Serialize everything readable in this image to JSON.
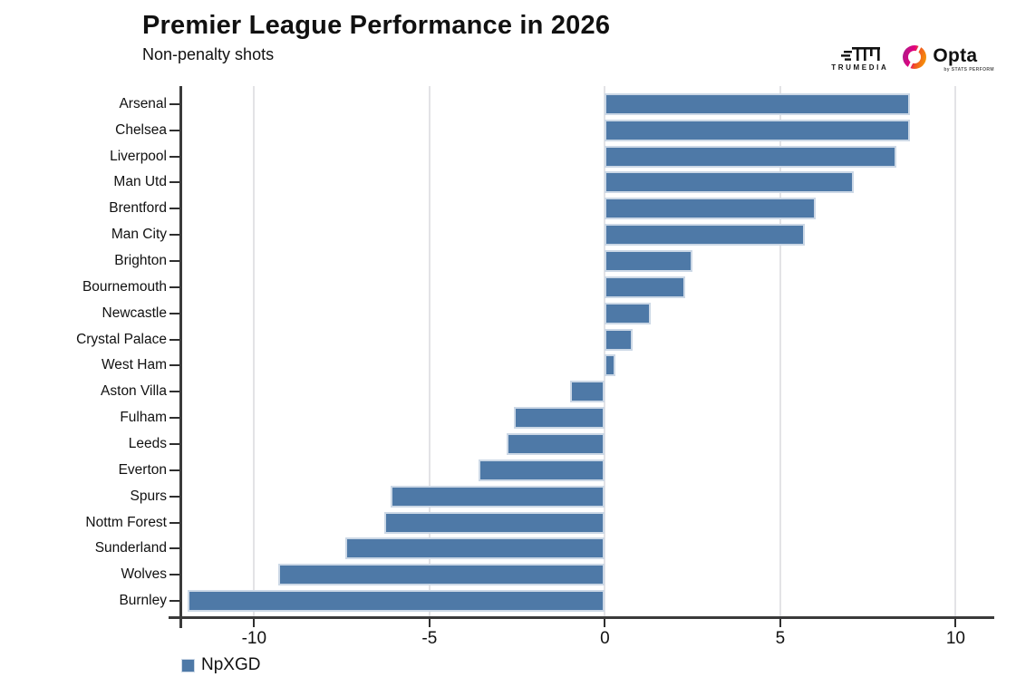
{
  "header": {
    "title": "Premier League Performance in 2026",
    "subtitle": "Non-penalty shots"
  },
  "logos": {
    "trumedia": {
      "word": "TRUMEDIA"
    },
    "opta": {
      "word": "Opta",
      "sublabel": "by STATS PERFORM"
    }
  },
  "legend": {
    "label": "NpXGD"
  },
  "chart_data": {
    "type": "bar",
    "orientation": "horizontal",
    "title": "Premier League Performance in 2026",
    "subtitle": "Non-penalty shots",
    "series_label": "NpXGD",
    "categories": [
      "Arsenal",
      "Chelsea",
      "Liverpool",
      "Man Utd",
      "Brentford",
      "Man City",
      "Brighton",
      "Bournemouth",
      "Newcastle",
      "Crystal Palace",
      "West Ham",
      "Aston Villa",
      "Fulham",
      "Leeds",
      "Everton",
      "Spurs",
      "Nottm Forest",
      "Sunderland",
      "Wolves",
      "Burnley"
    ],
    "values": [
      8.7,
      8.7,
      8.3,
      7.1,
      6.0,
      5.7,
      2.5,
      2.3,
      1.3,
      0.8,
      0.3,
      -1.0,
      -2.6,
      -2.8,
      -3.6,
      -6.1,
      -6.3,
      -7.4,
      -9.3,
      -11.9
    ],
    "xticks": [
      -10,
      -5,
      0,
      5,
      10
    ],
    "xlim": [
      -12.05,
      11.1
    ],
    "grid": true,
    "legend_position": "bottom-left",
    "bar_color": "#4e79a7",
    "bar_border_color": "#ccd8e6",
    "grid_color": "#e3e3e6",
    "axis_color": "#3a3a3a"
  }
}
